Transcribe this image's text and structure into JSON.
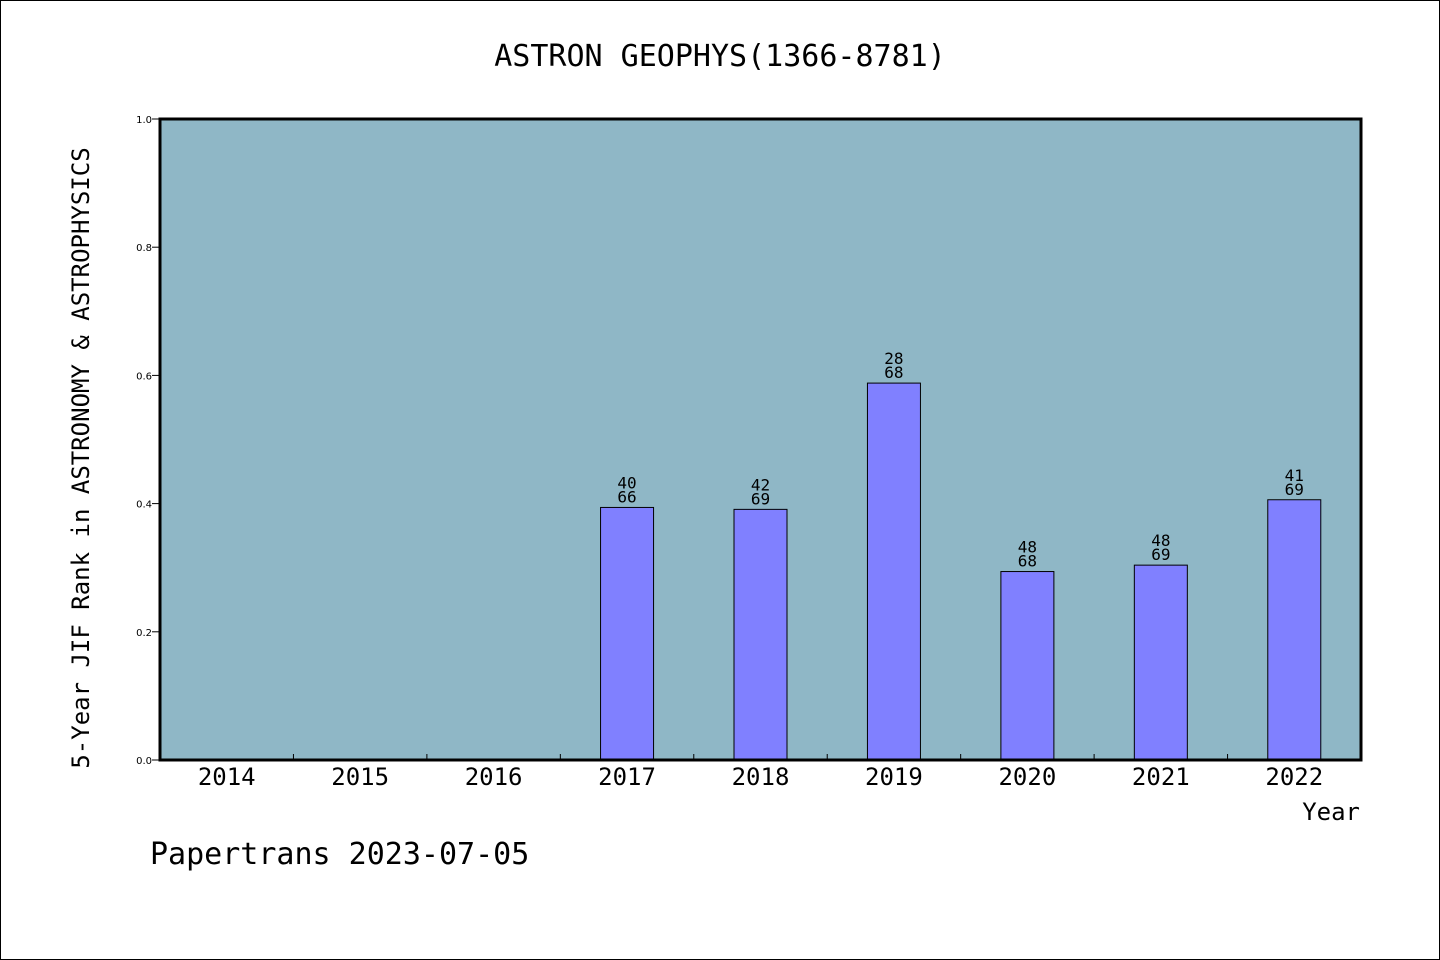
{
  "chart_data": {
    "type": "bar",
    "title": "ASTRON GEOPHYS(1366-8781)",
    "xlabel": "Year",
    "ylabel": "5-Year JIF Rank in ASTRONOMY & ASTROPHYSICS",
    "categories": [
      "2014",
      "2015",
      "2016",
      "2017",
      "2018",
      "2019",
      "2020",
      "2021",
      "2022"
    ],
    "values": [
      null,
      null,
      null,
      0.394,
      0.391,
      0.588,
      0.294,
      0.304,
      0.406
    ],
    "bar_labels": [
      null,
      null,
      null,
      [
        "40",
        "66"
      ],
      [
        "42",
        "69"
      ],
      [
        "28",
        "68"
      ],
      [
        "48",
        "68"
      ],
      [
        "48",
        "69"
      ],
      [
        "41",
        "69"
      ]
    ],
    "ylim": [
      0,
      1.0
    ],
    "yticks": [
      "0.0",
      "0.2",
      "0.4",
      "0.6",
      "0.8",
      "1.0"
    ],
    "grid": false,
    "colors": {
      "plot_background": "#8fb7c6",
      "bar_fill": "#8080ff",
      "bar_stroke": "#000000",
      "axis": "#000000"
    }
  },
  "footer": {
    "text": "Papertrans 2023-07-05"
  }
}
